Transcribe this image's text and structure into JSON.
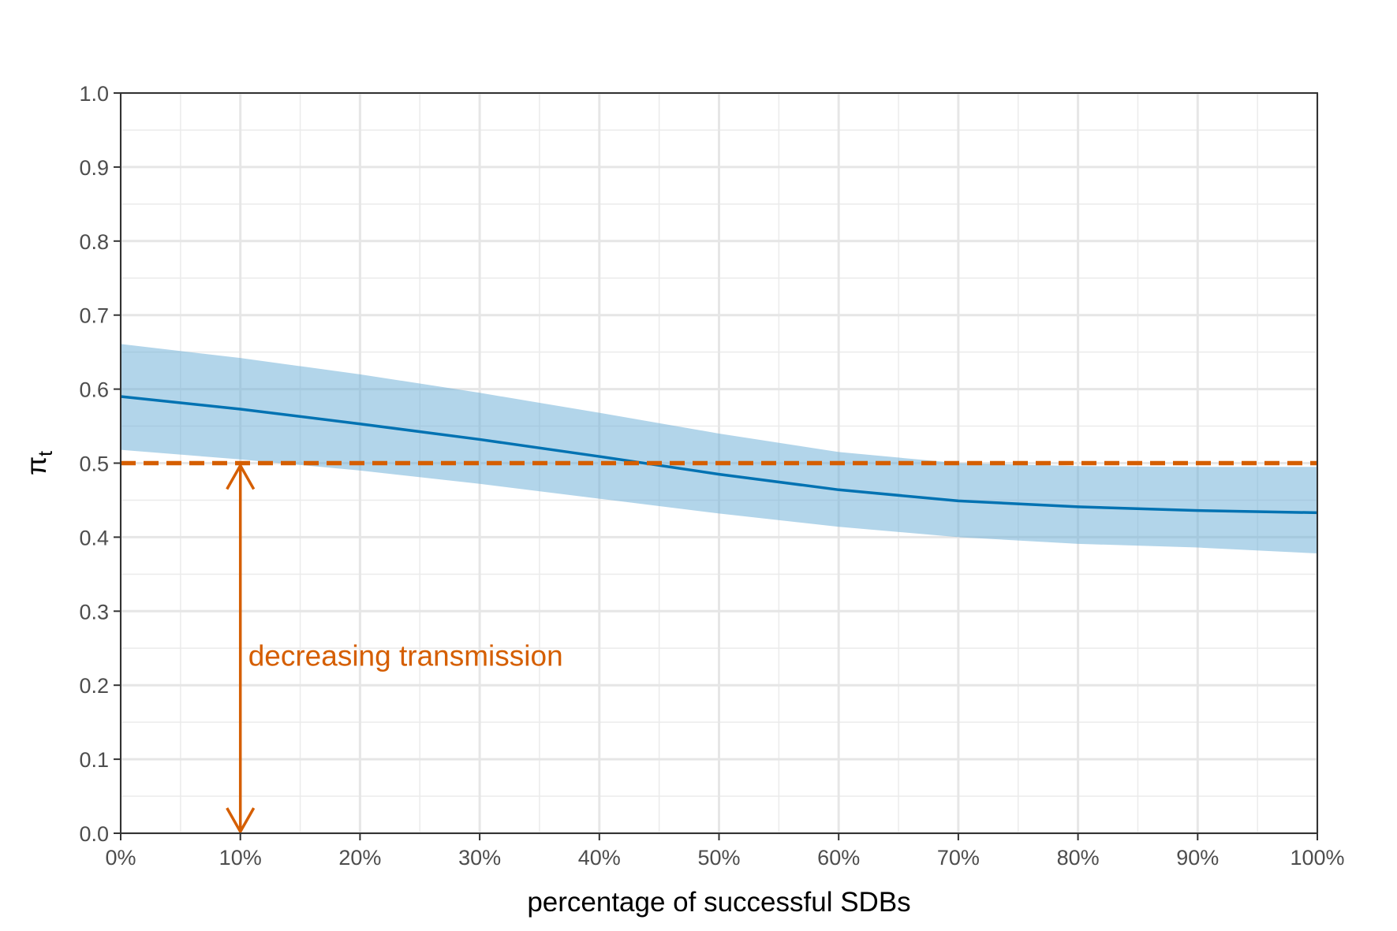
{
  "chart_data": {
    "type": "line",
    "xlabel": "percentage of successful SDBs",
    "ylabel": "π",
    "ylabel_subscript": "t",
    "xlim": [
      0,
      100
    ],
    "ylim": [
      0,
      1
    ],
    "x_ticks": [
      0,
      10,
      20,
      30,
      40,
      50,
      60,
      70,
      80,
      90,
      100
    ],
    "x_tick_labels": [
      "0%",
      "10%",
      "20%",
      "30%",
      "40%",
      "50%",
      "60%",
      "70%",
      "80%",
      "90%",
      "100%"
    ],
    "y_ticks": [
      0,
      0.1,
      0.2,
      0.3,
      0.4,
      0.5,
      0.6,
      0.7,
      0.8,
      0.9,
      1.0
    ],
    "y_tick_labels": [
      "0.0",
      "0.1",
      "0.2",
      "0.3",
      "0.4",
      "0.5",
      "0.6",
      "0.7",
      "0.8",
      "0.9",
      "1.0"
    ],
    "grid": true,
    "legend": "none",
    "series": [
      {
        "x": [
          0,
          10,
          20,
          30,
          40,
          50,
          60,
          70,
          80,
          90,
          100
        ],
        "y": [
          0.59,
          0.573,
          0.553,
          0.532,
          0.509,
          0.485,
          0.464,
          0.449,
          0.441,
          0.436,
          0.433
        ],
        "lower": [
          0.518,
          0.505,
          0.49,
          0.472,
          0.452,
          0.432,
          0.414,
          0.4,
          0.391,
          0.386,
          0.378
        ],
        "upper": [
          0.661,
          0.642,
          0.62,
          0.595,
          0.568,
          0.54,
          0.515,
          0.5,
          0.496,
          0.495,
          0.495
        ],
        "color": "#0072b2",
        "band_color": "#6baed6"
      }
    ],
    "reference_line": {
      "y": 0.5,
      "style": "dashed",
      "color": "#d55e00"
    },
    "annotation": {
      "text": "decreasing transmission",
      "x": 10,
      "arrow_from": 0.5,
      "arrow_to": 0.0,
      "text_y": 0.24,
      "color": "#d55e00"
    }
  }
}
